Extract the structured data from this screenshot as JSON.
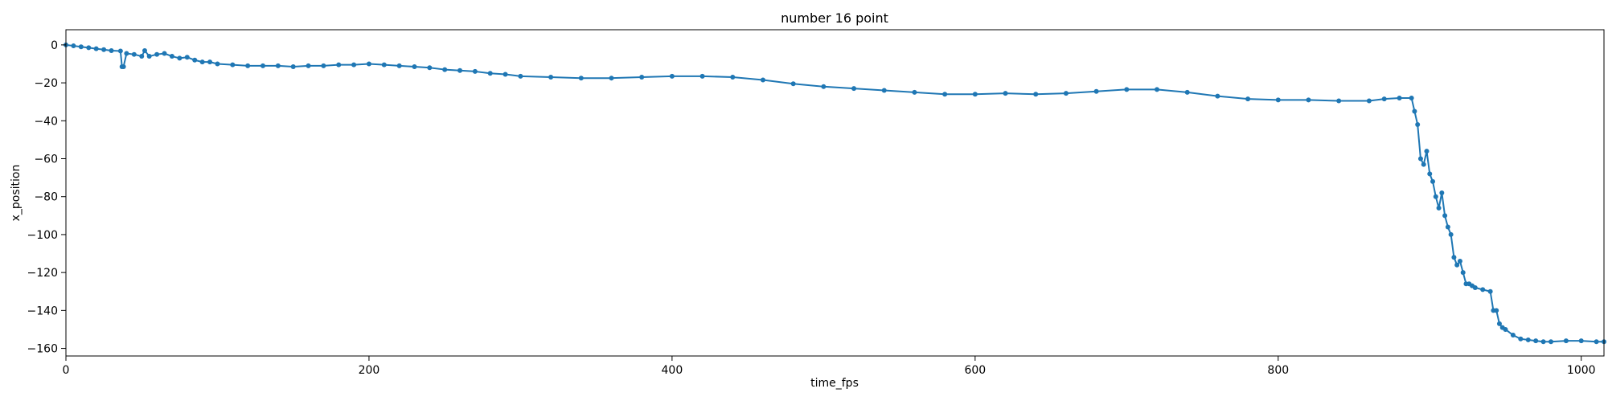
{
  "chart_data": {
    "type": "line",
    "title": "number 16 point",
    "xlabel": "time_fps",
    "ylabel": "x_position",
    "xlim": [
      0,
      1015
    ],
    "ylim": [
      -164,
      8
    ],
    "x_ticks": [
      0,
      200,
      400,
      600,
      800,
      1000
    ],
    "y_ticks": [
      0,
      -20,
      -40,
      -60,
      -80,
      -100,
      -120,
      -140,
      -160
    ],
    "grid": false,
    "marker": "circle",
    "color": "#1f77b4",
    "series": [
      {
        "x": [
          0,
          5,
          10,
          15,
          20,
          25,
          30,
          36,
          37,
          38,
          40,
          45,
          50,
          52,
          55,
          60,
          65,
          70,
          75,
          80,
          85,
          90,
          95,
          100,
          110,
          120,
          130,
          140,
          150,
          160,
          170,
          180,
          190,
          200,
          210,
          220,
          230,
          240,
          250,
          260,
          270,
          280,
          290,
          300,
          320,
          340,
          360,
          380,
          400,
          420,
          440,
          460,
          480,
          500,
          520,
          540,
          560,
          580,
          600,
          620,
          640,
          660,
          680,
          700,
          720,
          740,
          760,
          780,
          800,
          820,
          840,
          860,
          870,
          880,
          888,
          890,
          892,
          894,
          896,
          898,
          900,
          902,
          904,
          906,
          908,
          910,
          912,
          914,
          916,
          918,
          920,
          922,
          924,
          926,
          928,
          930,
          935,
          940,
          942,
          944,
          946,
          948,
          950,
          955,
          960,
          965,
          970,
          975,
          980,
          990,
          1000,
          1010,
          1015
        ],
        "y": [
          0,
          -0.5,
          -1,
          -1.5,
          -2,
          -2.5,
          -3,
          -3.2,
          -11.5,
          -11.5,
          -4.5,
          -5,
          -6,
          -3,
          -6,
          -5,
          -4.5,
          -6,
          -7,
          -6.5,
          -8,
          -9,
          -9,
          -10,
          -10.5,
          -11,
          -11,
          -11,
          -11.5,
          -11,
          -11,
          -10.5,
          -10.5,
          -10,
          -10.5,
          -11,
          -11.5,
          -12,
          -13,
          -13.5,
          -14,
          -15,
          -15.5,
          -16.5,
          -17,
          -17.5,
          -17.5,
          -17,
          -16.5,
          -16.5,
          -17,
          -18.5,
          -20.5,
          -22,
          -23,
          -24,
          -25,
          -26,
          -26,
          -25.5,
          -26,
          -25.5,
          -24.5,
          -23.5,
          -23.5,
          -25,
          -27,
          -28.5,
          -29,
          -29,
          -29.5,
          -29.5,
          -28.5,
          -28,
          -28,
          -35,
          -42,
          -60,
          -63,
          -56,
          -68,
          -72,
          -80,
          -86,
          -78,
          -90,
          -96,
          -100,
          -112,
          -116,
          -114,
          -120,
          -126,
          -126,
          -127,
          -128,
          -129,
          -130,
          -140,
          -140,
          -147,
          -149,
          -150,
          -153,
          -155,
          -155.5,
          -156,
          -156.5,
          -156.5,
          -156,
          -156,
          -156.5,
          -156.5
        ]
      }
    ]
  }
}
